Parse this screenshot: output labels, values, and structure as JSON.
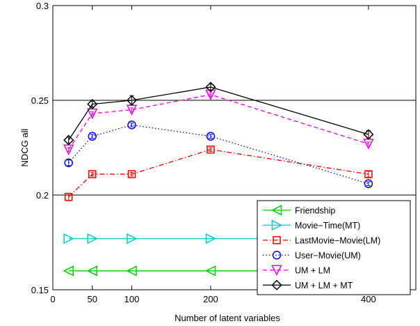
{
  "chart_data": {
    "type": "line",
    "xlabel": "Number of latent variables",
    "ylabel": "NDCG all",
    "xlim": [
      0,
      460
    ],
    "ylim": [
      0.15,
      0.3
    ],
    "x_ticks": [
      0,
      50,
      100,
      200,
      400
    ],
    "x_tick_labels": [
      "0",
      "50",
      "100",
      "200",
      "400"
    ],
    "y_ticks": [
      0.15,
      0.2,
      0.25,
      0.3
    ],
    "y_tick_labels": [
      "0.15",
      "0.2",
      "0.25",
      "0.3"
    ],
    "grid": "horizontal at 0.2 and 0.25",
    "legend": "bottom-right",
    "series": [
      {
        "name": "Friendship",
        "color": "#00cc00",
        "dash": "solid",
        "marker": "triangle-left",
        "x": [
          20,
          50,
          100,
          200,
          400
        ],
        "y": [
          0.16,
          0.16,
          0.16,
          0.16,
          0.16
        ],
        "err": [
          0,
          0,
          0,
          0,
          0
        ]
      },
      {
        "name": "Movie−Time(MT)",
        "color": "#00cccc",
        "dash": "solid",
        "marker": "triangle-right",
        "x": [
          20,
          50,
          100,
          200,
          400
        ],
        "y": [
          0.177,
          0.177,
          0.177,
          0.177,
          0.177
        ],
        "err": [
          0,
          0,
          0,
          0,
          0
        ]
      },
      {
        "name": "LastMovie−Movie(LM)",
        "color": "#ee0000",
        "dash": "dashdot",
        "marker": "square",
        "x": [
          20,
          50,
          100,
          200,
          400
        ],
        "y": [
          0.199,
          0.211,
          0.211,
          0.224,
          0.211
        ],
        "err": [
          0.002,
          0.001,
          0.001,
          0.001,
          0.0015
        ]
      },
      {
        "name": "User−Movie(UM)",
        "color": "#0000ee",
        "dash": "dotted",
        "marker": "circle",
        "x": [
          20,
          50,
          100,
          200,
          400
        ],
        "y": [
          0.217,
          0.231,
          0.237,
          0.231,
          0.206
        ],
        "err": [
          0.0015,
          0.001,
          0.001,
          0.001,
          0.001
        ]
      },
      {
        "name": "UM + LM",
        "color": "#ee00ee",
        "dash": "dashed",
        "marker": "triangle-down",
        "x": [
          20,
          50,
          100,
          200,
          400
        ],
        "y": [
          0.224,
          0.243,
          0.245,
          0.253,
          0.227
        ],
        "err": [
          0.001,
          0.001,
          0.001,
          0.001,
          0.001
        ]
      },
      {
        "name": "UM + LM + MT",
        "color": "#000000",
        "dash": "solid",
        "marker": "diamond",
        "x": [
          20,
          50,
          100,
          200,
          400
        ],
        "y": [
          0.229,
          0.248,
          0.25,
          0.257,
          0.232
        ],
        "err": [
          0.0015,
          0.0015,
          0.0025,
          0.0015,
          0.002
        ]
      }
    ]
  }
}
